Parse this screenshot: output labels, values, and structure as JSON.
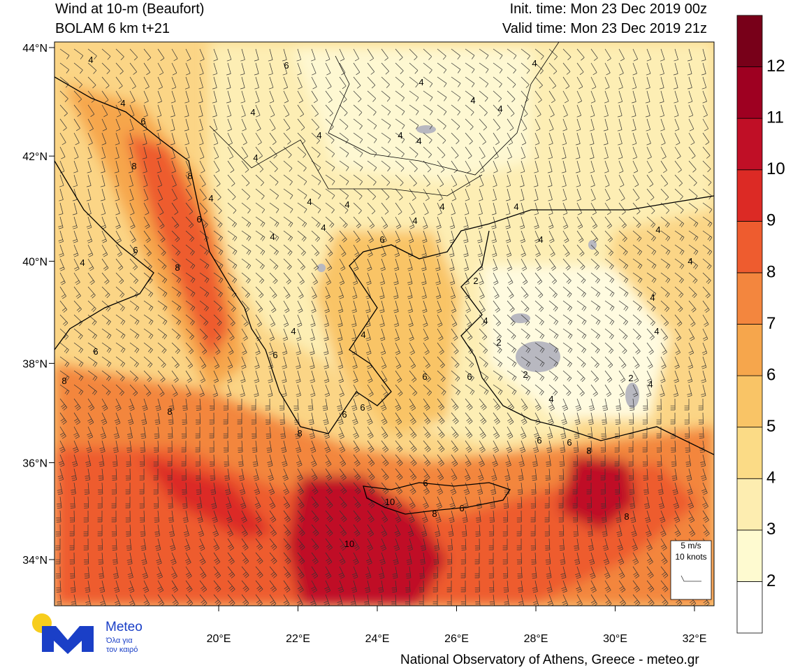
{
  "header": {
    "title": "Wind at 10-m (Beaufort)",
    "model": "BOLAM 6 km t+21",
    "init_time": "Init. time: Mon 23 Dec 2019 00z",
    "valid_time": "Valid time: Mon 23 Dec 2019 21z"
  },
  "map": {
    "lat_ticks": [
      {
        "value": 44,
        "label": "44°N"
      },
      {
        "value": 42,
        "label": "42°N"
      },
      {
        "value": 40,
        "label": "40°N"
      },
      {
        "value": 38,
        "label": "38°N"
      },
      {
        "value": 36,
        "label": "36°N"
      },
      {
        "value": 34,
        "label": "34°N"
      }
    ],
    "lon_ticks": [
      {
        "value": 20,
        "label": "20°E"
      },
      {
        "value": 22,
        "label": "22°E"
      },
      {
        "value": 24,
        "label": "24°E"
      },
      {
        "value": 26,
        "label": "26°E"
      },
      {
        "value": 28,
        "label": "28°E"
      },
      {
        "value": 30,
        "label": "30°E"
      },
      {
        "value": 32,
        "label": "32°E"
      }
    ],
    "contour_labels": [
      4,
      6,
      4,
      4,
      4,
      4,
      4,
      4,
      6,
      4,
      4,
      4,
      8,
      8,
      4,
      4,
      4,
      4,
      4,
      4,
      6,
      4,
      4,
      4,
      6,
      4,
      4,
      6,
      4,
      8,
      4,
      2,
      4,
      4,
      4,
      4,
      4,
      2,
      6,
      6,
      2,
      6,
      6,
      2,
      4,
      8,
      4,
      8,
      6,
      6,
      8,
      6,
      6,
      8,
      6,
      10,
      8,
      6,
      8,
      10
    ],
    "scale_legend": {
      "speed": "5 m/s",
      "knots": "10 knots"
    }
  },
  "colorbar": {
    "levels": [
      2,
      3,
      4,
      5,
      6,
      7,
      8,
      9,
      10,
      11,
      12
    ],
    "colors": [
      "#ffffff",
      "#fefad0",
      "#fdedb0",
      "#fbdb86",
      "#f9c466",
      "#f6a64c",
      "#f3863e",
      "#ee5c2f",
      "#dc2a25",
      "#c00f26",
      "#9e0021",
      "#780019"
    ]
  },
  "logo": {
    "name": "Meteo",
    "slogan_line1": "Όλα για",
    "slogan_line2": "τον καιρό"
  },
  "footer": {
    "credit": "National Observatory of Athens, Greece - meteo.gr"
  }
}
